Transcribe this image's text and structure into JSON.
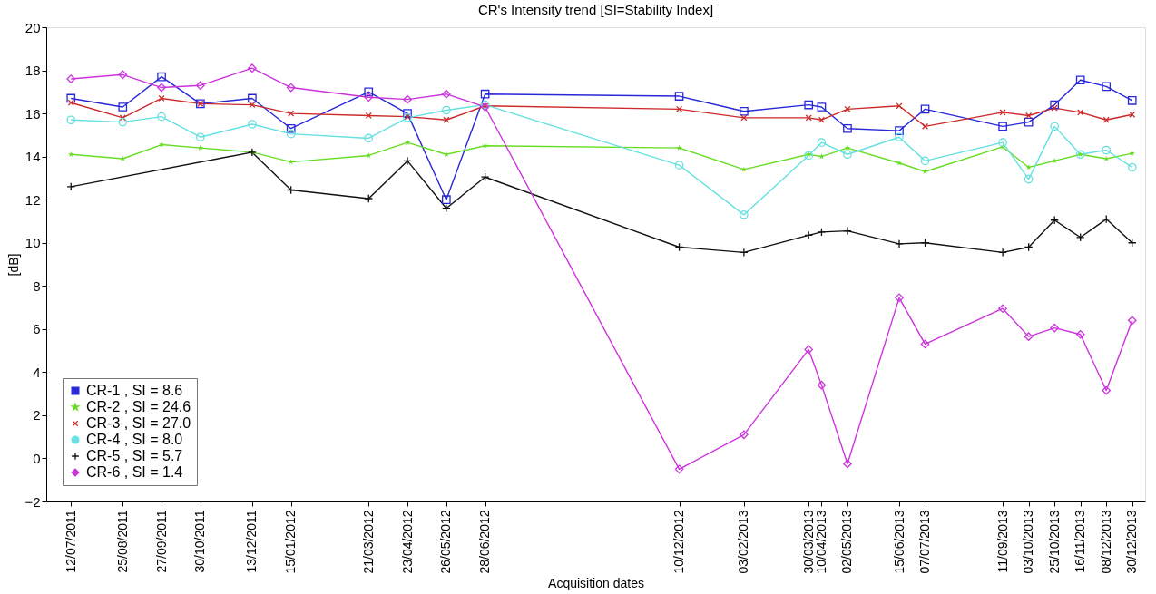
{
  "chart_data": {
    "type": "line",
    "title": "CR's Intensity trend     [SI=Stability Index]",
    "xlabel": "Acquisition dates",
    "ylabel": "[dB]",
    "x": [
      "2011-07-12",
      "2011-08-25",
      "2011-09-27",
      "2011-10-30",
      "2011-12-13",
      "2012-01-15",
      "2012-03-21",
      "2012-04-23",
      "2012-05-26",
      "2012-06-28",
      "2012-12-10",
      "2013-02-03",
      "2013-03-30",
      "2013-04-10",
      "2013-05-02",
      "2013-06-15",
      "2013-07-07",
      "2013-09-11",
      "2013-10-03",
      "2013-10-25",
      "2013-11-16",
      "2013-12-08",
      "2013-12-30"
    ],
    "xlim": [
      "2011-06-21",
      "2014-01-10"
    ],
    "xticks": [
      {
        "value": "2011-07-12",
        "label": "12/07/2011"
      },
      {
        "value": "2011-08-25",
        "label": "25/08/2011"
      },
      {
        "value": "2011-09-27",
        "label": "27/09/2011"
      },
      {
        "value": "2011-10-30",
        "label": "30/10/2011"
      },
      {
        "value": "2011-12-13",
        "label": "13/12/2011"
      },
      {
        "value": "2012-01-15",
        "label": "15/01/2012"
      },
      {
        "value": "2012-03-21",
        "label": "21/03/2012"
      },
      {
        "value": "2012-04-23",
        "label": "23/04/2012"
      },
      {
        "value": "2012-05-26",
        "label": "26/05/2012"
      },
      {
        "value": "2012-06-28",
        "label": "28/06/2012"
      },
      {
        "value": "2012-12-10",
        "label": "10/12/2012"
      },
      {
        "value": "2013-02-03",
        "label": "03/02/2013"
      },
      {
        "value": "2013-03-30",
        "label": "30/03/2013"
      },
      {
        "value": "2013-04-10",
        "label": "10/04/2013"
      },
      {
        "value": "2013-05-02",
        "label": "02/05/2013"
      },
      {
        "value": "2013-06-15",
        "label": "15/06/2013"
      },
      {
        "value": "2013-07-07",
        "label": "07/07/2013"
      },
      {
        "value": "2013-09-11",
        "label": "11/09/2013"
      },
      {
        "value": "2013-10-03",
        "label": "03/10/2013"
      },
      {
        "value": "2013-10-25",
        "label": "25/10/2013"
      },
      {
        "value": "2013-11-16",
        "label": "16/11/2013"
      },
      {
        "value": "2013-12-08",
        "label": "08/12/2013"
      },
      {
        "value": "2013-12-30",
        "label": "30/12/2013"
      }
    ],
    "ylim": [
      -2,
      20
    ],
    "yticks": [
      -2,
      0,
      2,
      4,
      6,
      8,
      10,
      12,
      14,
      16,
      18,
      20
    ],
    "grid": false,
    "legend": "bottom left",
    "line_style": "solid",
    "series": [
      {
        "name": "CR-1 , SI = 8.6",
        "color": "#2828d8",
        "marker": "square",
        "values": [
          16.7,
          16.3,
          17.7,
          16.45,
          16.7,
          15.3,
          17.0,
          16.0,
          12.0,
          16.9,
          16.8,
          16.1,
          16.4,
          16.3,
          15.3,
          15.2,
          16.2,
          15.4,
          15.6,
          16.4,
          17.55,
          17.25,
          16.6
        ]
      },
      {
        "name": "CR-2 , SI = 24.6",
        "color": "#66dd22",
        "marker": "star",
        "values": [
          14.1,
          13.9,
          14.55,
          14.4,
          14.2,
          13.75,
          14.05,
          14.65,
          14.1,
          14.5,
          14.4,
          13.4,
          14.1,
          14.0,
          14.4,
          13.7,
          13.3,
          14.45,
          13.5,
          13.8,
          14.1,
          13.9,
          14.15
        ]
      },
      {
        "name": "CR-3 , SI = 27.0",
        "color": "#cc2a2a",
        "marker": "cross",
        "values": [
          16.5,
          15.8,
          16.7,
          16.45,
          16.4,
          16.0,
          15.9,
          15.85,
          15.7,
          16.35,
          16.2,
          15.8,
          15.8,
          15.7,
          16.2,
          16.35,
          15.4,
          16.05,
          15.9,
          16.25,
          16.05,
          15.7,
          15.95
        ]
      },
      {
        "name": "CR-4 , SI = 8.0",
        "color": "#66e0e0",
        "marker": "circle",
        "values": [
          15.7,
          15.6,
          15.85,
          14.9,
          15.5,
          15.05,
          14.85,
          15.8,
          16.15,
          16.4,
          13.6,
          11.3,
          14.05,
          14.65,
          14.1,
          14.9,
          13.8,
          14.65,
          12.95,
          15.4,
          14.1,
          14.3,
          13.5
        ]
      },
      {
        "name": "CR-5 , SI = 5.7",
        "color": "#111111",
        "marker": "plus",
        "x": [
          "2011-07-12",
          "2011-12-13",
          "2012-01-15",
          "2012-03-21",
          "2012-04-23",
          "2012-05-26",
          "2012-06-28",
          "2012-12-10",
          "2013-02-03",
          "2013-03-30",
          "2013-04-10",
          "2013-05-02",
          "2013-06-15",
          "2013-07-07",
          "2013-09-11",
          "2013-10-03",
          "2013-10-25",
          "2013-11-16",
          "2013-12-08",
          "2013-12-30"
        ],
        "values": [
          12.6,
          14.2,
          12.45,
          12.05,
          13.8,
          11.6,
          13.05,
          9.8,
          9.55,
          10.35,
          10.5,
          10.55,
          9.95,
          10.0,
          9.55,
          9.8,
          11.05,
          10.25,
          11.1,
          10.0
        ]
      },
      {
        "name": "CR-6 , SI = 1.4",
        "color": "#cc33dd",
        "marker": "diamond",
        "values": [
          17.6,
          17.8,
          17.2,
          17.3,
          18.1,
          17.2,
          16.75,
          16.65,
          16.9,
          16.3,
          -0.5,
          1.1,
          5.05,
          3.4,
          -0.25,
          7.45,
          5.3,
          6.95,
          5.65,
          6.05,
          5.75,
          3.15,
          6.4
        ]
      }
    ]
  }
}
